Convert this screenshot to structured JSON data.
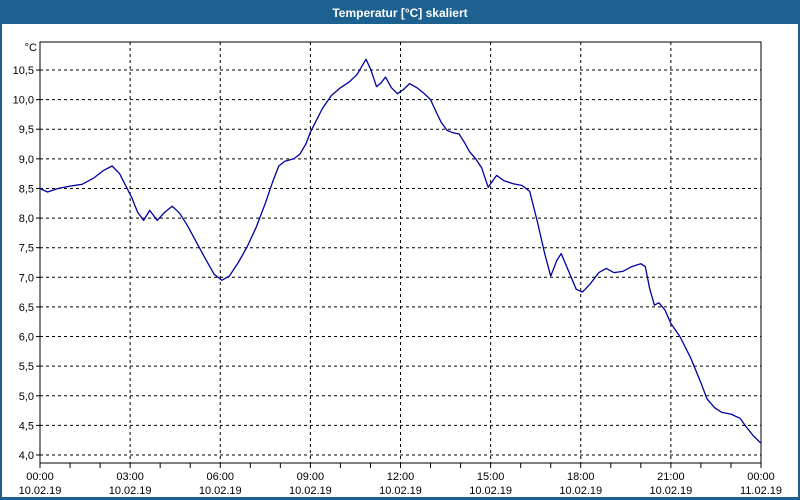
{
  "window": {
    "title": "Temperatur [°C] skaliert",
    "title_bar_color": "#1d6191",
    "border_color": "#1d6191",
    "background_color": "#ffffff"
  },
  "chart_data": {
    "type": "line",
    "title": "Temperatur [°C] skaliert",
    "unit_label": "°C",
    "ylabel": "°C",
    "ylim": [
      4.0,
      10.5
    ],
    "y_tick_step": 0.5,
    "y_tick_labels": [
      "4,0",
      "4,5",
      "5,0",
      "5,5",
      "6,0",
      "6,5",
      "7,0",
      "7,5",
      "8,0",
      "8,5",
      "9,0",
      "9,5",
      "10,0",
      "10,5"
    ],
    "x_range_hours": [
      0,
      24
    ],
    "x_minor_tick_hours": 1,
    "x_ticks": [
      {
        "hour": 0,
        "time": "00:00",
        "date": "10.02.19"
      },
      {
        "hour": 3,
        "time": "03:00",
        "date": "10.02.19"
      },
      {
        "hour": 6,
        "time": "06:00",
        "date": "10.02.19"
      },
      {
        "hour": 9,
        "time": "09:00",
        "date": "10.02.19"
      },
      {
        "hour": 12,
        "time": "12:00",
        "date": "10.02.19"
      },
      {
        "hour": 15,
        "time": "15:00",
        "date": "10.02.19"
      },
      {
        "hour": 18,
        "time": "18:00",
        "date": "10.02.19"
      },
      {
        "hour": 21,
        "time": "21:00",
        "date": "10.02.19"
      },
      {
        "hour": 24,
        "time": "00:00",
        "date": "11.02.19"
      }
    ],
    "grid": "dashed",
    "legend": "none",
    "line_color": "#0000a0",
    "grid_color": "#000000",
    "series": [
      {
        "name": "Temperatur",
        "points": [
          [
            0.0,
            8.5
          ],
          [
            0.25,
            8.44
          ],
          [
            0.6,
            8.5
          ],
          [
            1.0,
            8.54
          ],
          [
            1.4,
            8.57
          ],
          [
            1.8,
            8.68
          ],
          [
            2.1,
            8.8
          ],
          [
            2.4,
            8.88
          ],
          [
            2.65,
            8.75
          ],
          [
            2.85,
            8.55
          ],
          [
            3.05,
            8.35
          ],
          [
            3.25,
            8.1
          ],
          [
            3.45,
            7.96
          ],
          [
            3.65,
            8.13
          ],
          [
            3.9,
            7.96
          ],
          [
            4.15,
            8.1
          ],
          [
            4.4,
            8.2
          ],
          [
            4.65,
            8.08
          ],
          [
            4.9,
            7.88
          ],
          [
            5.2,
            7.6
          ],
          [
            5.5,
            7.32
          ],
          [
            5.8,
            7.05
          ],
          [
            6.05,
            6.95
          ],
          [
            6.3,
            7.02
          ],
          [
            6.6,
            7.25
          ],
          [
            6.9,
            7.52
          ],
          [
            7.2,
            7.85
          ],
          [
            7.5,
            8.25
          ],
          [
            7.75,
            8.62
          ],
          [
            7.95,
            8.88
          ],
          [
            8.15,
            8.96
          ],
          [
            8.45,
            9.0
          ],
          [
            8.65,
            9.08
          ],
          [
            8.85,
            9.25
          ],
          [
            9.0,
            9.45
          ],
          [
            9.2,
            9.65
          ],
          [
            9.4,
            9.85
          ],
          [
            9.7,
            10.07
          ],
          [
            10.0,
            10.2
          ],
          [
            10.3,
            10.3
          ],
          [
            10.55,
            10.42
          ],
          [
            10.85,
            10.68
          ],
          [
            11.0,
            10.52
          ],
          [
            11.2,
            10.22
          ],
          [
            11.35,
            10.28
          ],
          [
            11.5,
            10.38
          ],
          [
            11.7,
            10.2
          ],
          [
            11.9,
            10.1
          ],
          [
            12.1,
            10.17
          ],
          [
            12.3,
            10.27
          ],
          [
            12.55,
            10.2
          ],
          [
            12.8,
            10.1
          ],
          [
            13.0,
            10.0
          ],
          [
            13.2,
            9.78
          ],
          [
            13.35,
            9.62
          ],
          [
            13.55,
            9.48
          ],
          [
            13.75,
            9.44
          ],
          [
            13.95,
            9.42
          ],
          [
            14.1,
            9.3
          ],
          [
            14.3,
            9.12
          ],
          [
            14.5,
            9.0
          ],
          [
            14.7,
            8.85
          ],
          [
            14.92,
            8.52
          ],
          [
            15.2,
            8.72
          ],
          [
            15.45,
            8.63
          ],
          [
            15.75,
            8.58
          ],
          [
            16.05,
            8.55
          ],
          [
            16.3,
            8.45
          ],
          [
            16.55,
            7.95
          ],
          [
            16.8,
            7.4
          ],
          [
            17.0,
            7.02
          ],
          [
            17.2,
            7.28
          ],
          [
            17.35,
            7.4
          ],
          [
            17.6,
            7.1
          ],
          [
            17.85,
            6.8
          ],
          [
            18.05,
            6.75
          ],
          [
            18.3,
            6.88
          ],
          [
            18.6,
            7.08
          ],
          [
            18.85,
            7.15
          ],
          [
            19.1,
            7.08
          ],
          [
            19.4,
            7.1
          ],
          [
            19.7,
            7.18
          ],
          [
            20.0,
            7.23
          ],
          [
            20.15,
            7.18
          ],
          [
            20.3,
            6.8
          ],
          [
            20.45,
            6.53
          ],
          [
            20.6,
            6.57
          ],
          [
            20.8,
            6.45
          ],
          [
            21.0,
            6.22
          ],
          [
            21.3,
            6.0
          ],
          [
            21.65,
            5.65
          ],
          [
            22.0,
            5.22
          ],
          [
            22.2,
            4.95
          ],
          [
            22.45,
            4.8
          ],
          [
            22.7,
            4.72
          ],
          [
            23.0,
            4.69
          ],
          [
            23.3,
            4.62
          ],
          [
            23.5,
            4.48
          ],
          [
            23.75,
            4.32
          ],
          [
            24.0,
            4.2
          ]
        ]
      }
    ]
  }
}
